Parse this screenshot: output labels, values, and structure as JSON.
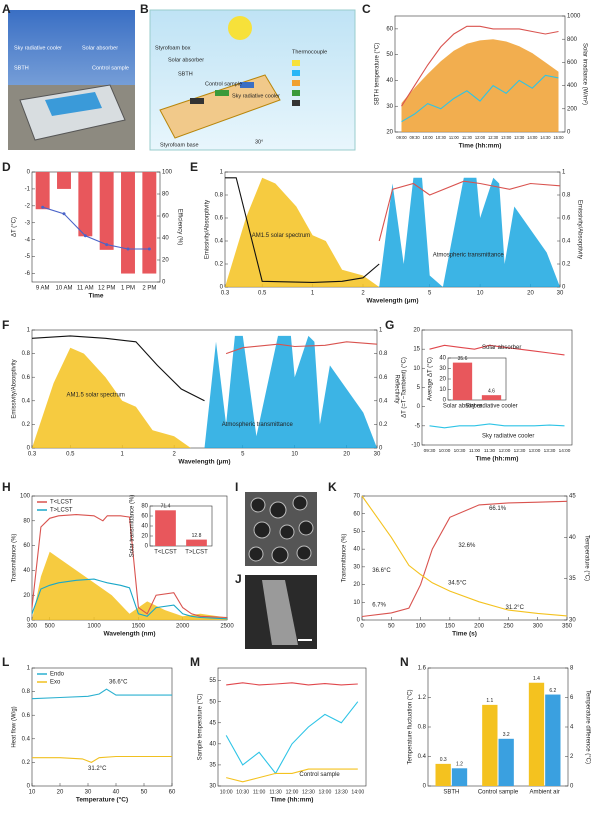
{
  "panel_labels": [
    "A",
    "B",
    "C",
    "D",
    "E",
    "F",
    "G",
    "H",
    "I",
    "J",
    "K",
    "L",
    "M",
    "N"
  ],
  "figure_texts": {
    "A": [
      "Sky radiative cooler",
      "Solar absorber",
      "SBTH",
      "Control sample"
    ],
    "B": [
      "Styrofoam box",
      "Solar absorber",
      "SBTH",
      "Control sample",
      "Sky radiative cooler",
      "Thermocouple",
      "Styrofoam base",
      "30°"
    ]
  },
  "chart_data": [
    {
      "type": "line",
      "xlabel": "Time (hh:mm)",
      "ylabel": "SBTH temperature (°C)",
      "y2label": "Solar irradiance (W/m²)",
      "categories": [
        "09:00",
        "09:30",
        "10:00",
        "10:30",
        "11:00",
        "11:30",
        "12:00",
        "12:30",
        "13:00",
        "13:30",
        "14:00",
        "14:30",
        "15:00"
      ],
      "ylim": [
        20,
        65
      ],
      "yticks": [
        20,
        30,
        40,
        50,
        60
      ],
      "y2lim": [
        0,
        1000
      ],
      "y2ticks": [
        0,
        200,
        400,
        600,
        800,
        1000
      ],
      "series": [
        {
          "color": "#f0a030",
          "fill": true,
          "axis": "y2",
          "values": [
            250,
            380,
            500,
            610,
            700,
            760,
            790,
            800,
            780,
            740,
            680,
            600,
            520
          ]
        },
        {
          "color": "#d9534f",
          "values": [
            30,
            38,
            46,
            53,
            58,
            61,
            61,
            60,
            60,
            60,
            59,
            58,
            59
          ]
        },
        {
          "color": "#2ec4e6",
          "values": [
            24,
            27,
            31,
            29,
            33,
            36,
            32,
            38,
            35,
            40,
            37,
            42,
            41
          ]
        }
      ]
    },
    {
      "type": "bar",
      "xlabel": "Time",
      "ylabel": "ΔT (°C)",
      "y2label": "Efficiency (%)",
      "categories": [
        "9 AM",
        "10 AM",
        "11 AM",
        "12 PM",
        "1 PM",
        "2 PM"
      ],
      "ylim": [
        -6.5,
        0
      ],
      "yticks": [
        0,
        -1,
        -2,
        -3,
        -4,
        -5,
        -6
      ],
      "y2lim": [
        0,
        100
      ],
      "y2ticks": [
        0,
        20,
        40,
        60,
        80,
        100
      ],
      "series": [
        {
          "color": "#e8575c",
          "values": [
            -2.2,
            -1.0,
            -3.8,
            -4.6,
            -6.0,
            -6.0
          ]
        },
        {
          "color": "#4a63c8",
          "style": "line",
          "axis": "y2",
          "values": [
            68,
            62,
            42,
            34,
            30,
            30
          ]
        }
      ]
    },
    {
      "type": "line",
      "xscale": "log",
      "xlabel": "Wavelength (μm)",
      "ylabel": "Emissivity/Absorptivity",
      "y2label": "Emissivity/Absorptivity",
      "xlim": [
        0.3,
        30
      ],
      "xticks": [
        0.3,
        0.5,
        1,
        2,
        5,
        10,
        20,
        30
      ],
      "ylim": [
        0,
        1
      ],
      "yticks": [
        0,
        0.2,
        0.4,
        0.6,
        0.8,
        1
      ],
      "y2lim": [
        0,
        1
      ],
      "y2ticks": [
        0,
        0.2,
        0.4,
        0.6,
        0.8,
        1
      ],
      "annotations": [
        "AM1.5 solar spectrum",
        "Atmospheric transmittance"
      ],
      "series": [
        {
          "color": "#f4c21f",
          "fill": true,
          "x": [
            0.3,
            0.4,
            0.5,
            0.6,
            0.8,
            1.0,
            1.2,
            1.5,
            2.0,
            2.5
          ],
          "values": [
            0,
            0.6,
            0.95,
            0.9,
            0.7,
            0.45,
            0.4,
            0.15,
            0.1,
            0
          ]
        },
        {
          "color": "#1aa7e0",
          "fill": true,
          "x": [
            2.5,
            3,
            3.5,
            4,
            4.5,
            5,
            6,
            8,
            9.5,
            10,
            12,
            13,
            14,
            16,
            20,
            25,
            30
          ],
          "values": [
            0,
            0.9,
            0.2,
            0.95,
            0.95,
            0.1,
            0,
            0.95,
            0.95,
            0.6,
            0.95,
            0.9,
            0.2,
            0.7,
            0.5,
            0.3,
            0
          ]
        },
        {
          "color": "#111111",
          "x": [
            0.3,
            0.35,
            0.5,
            1,
            1.5,
            2,
            2.5
          ],
          "values": [
            0.95,
            0.95,
            0.05,
            0.04,
            0.05,
            0.08,
            0.2
          ]
        },
        {
          "color": "#d9534f",
          "axis": "y2",
          "x": [
            2.5,
            3,
            4,
            5,
            8,
            10,
            15,
            20,
            30
          ],
          "values": [
            0.4,
            0.85,
            0.9,
            0.8,
            0.92,
            0.9,
            0.85,
            0.9,
            0.88
          ]
        }
      ]
    },
    {
      "type": "line",
      "xscale": "log",
      "xlabel": "Wavelength (μm)",
      "ylabel": "Emissivity/Absorptivity",
      "y2label": "Reflectivity",
      "xlim": [
        0.3,
        30
      ],
      "xticks": [
        0.3,
        0.5,
        1,
        2,
        5,
        10,
        20,
        30
      ],
      "ylim": [
        0,
        1
      ],
      "yticks": [
        0,
        0.2,
        0.4,
        0.6,
        0.8,
        1
      ],
      "y2lim": [
        0,
        1
      ],
      "y2ticks": [
        0,
        0.2,
        0.4,
        0.6,
        0.8,
        1
      ],
      "annotations": [
        "AM1.5 solar spectrum",
        "Atmospheric transmittance"
      ],
      "series": [
        {
          "color": "#f4c21f",
          "fill": true,
          "x": [
            0.3,
            0.4,
            0.5,
            0.6,
            0.8,
            1.0,
            1.2,
            1.5,
            2.0,
            2.5
          ],
          "values": [
            0,
            0.55,
            0.85,
            0.8,
            0.6,
            0.4,
            0.35,
            0.15,
            0.1,
            0
          ]
        },
        {
          "color": "#1aa7e0",
          "fill": true,
          "x": [
            3,
            3.5,
            4,
            4.5,
            5,
            6,
            8,
            9.5,
            10,
            12,
            13,
            14,
            16,
            20,
            25,
            30
          ],
          "values": [
            0,
            0.9,
            0.2,
            0.95,
            0.95,
            0.1,
            0.95,
            0.95,
            0.6,
            0.95,
            0.9,
            0.2,
            0.7,
            0.5,
            0.3,
            0
          ]
        },
        {
          "color": "#111111",
          "x": [
            0.3,
            0.5,
            0.8,
            1.2,
            1.6,
            2.2,
            3
          ],
          "values": [
            0.93,
            0.95,
            0.93,
            0.9,
            0.7,
            0.5,
            0.4
          ]
        },
        {
          "color": "#d9534f",
          "axis": "y2",
          "x": [
            4,
            5,
            8,
            10,
            15,
            20,
            30
          ],
          "values": [
            0.8,
            0.85,
            0.88,
            0.86,
            0.87,
            0.9,
            0.88
          ]
        }
      ]
    },
    {
      "type": "line",
      "xlabel": "Time (hh:mm)",
      "ylabel": "ΔT (=T−Tambient) (°C)",
      "categories": [
        "09:30",
        "10:00",
        "10:30",
        "11:00",
        "11:30",
        "12:00",
        "12:30",
        "13:00",
        "13:30",
        "14:00"
      ],
      "ylim": [
        -10,
        20
      ],
      "yticks": [
        -10,
        -5,
        0,
        5,
        10,
        15,
        20
      ],
      "annotations": [
        "Solar absorber",
        "Sky radiative cooler"
      ],
      "series": [
        {
          "color": "#e0474c",
          "values": [
            15,
            16,
            15.5,
            15,
            16,
            15.5,
            15,
            14.5,
            14,
            13.5
          ]
        },
        {
          "color": "#2ec4e6",
          "values": [
            -5,
            -5.5,
            -5,
            -5,
            -4.5,
            -5,
            -5,
            -5,
            -4.8,
            -5
          ]
        }
      ]
    },
    {
      "type": "bar",
      "ylabel": "Average ΔT (°C)",
      "show_values": true,
      "categories": [
        "Solar absorber",
        "Sky radiative cooler"
      ],
      "ylim": [
        0,
        40
      ],
      "yticks": [
        0,
        10,
        20,
        30,
        40
      ],
      "series": [
        {
          "color": "#e8575c",
          "values": [
            35.6,
            4.6
          ]
        }
      ]
    },
    {
      "type": "line",
      "xlabel": "Wavelength (nm)",
      "ylabel": "Transmittance (%)",
      "xlim": [
        300,
        2500
      ],
      "xticks": [
        300,
        500,
        1000,
        1500,
        2000,
        2500
      ],
      "ylim": [
        0,
        100
      ],
      "yticks": [
        0,
        20,
        40,
        60,
        80,
        100
      ],
      "series": [
        {
          "color": "#f4c21f",
          "fill": true,
          "x": [
            300,
            400,
            500,
            600,
            800,
            1000,
            1200,
            1400,
            1600,
            1800,
            2000,
            2200,
            2500
          ],
          "values": [
            0,
            35,
            55,
            50,
            40,
            30,
            20,
            5,
            15,
            8,
            3,
            5,
            2
          ]
        },
        {
          "name": "T<LCST",
          "color": "#d9534f",
          "x": [
            300,
            400,
            500,
            600,
            800,
            1000,
            1100,
            1150,
            1300,
            1400,
            1500,
            1600,
            1700,
            1900,
            2000,
            2100,
            2200,
            2500
          ],
          "values": [
            10,
            75,
            82,
            84,
            85,
            84,
            80,
            84,
            84,
            83,
            10,
            5,
            20,
            22,
            10,
            5,
            3,
            2
          ]
        },
        {
          "name": "T>LCST",
          "color": "#1aa7c8",
          "x": [
            300,
            400,
            500,
            600,
            800,
            1000,
            1100,
            1150,
            1300,
            1400,
            1500,
            1600,
            1700,
            1900,
            2000,
            2100,
            2200,
            2500
          ],
          "values": [
            5,
            25,
            28,
            30,
            32,
            33,
            31,
            30,
            28,
            26,
            5,
            3,
            10,
            12,
            5,
            3,
            2,
            1
          ]
        }
      ]
    },
    {
      "type": "bar",
      "ylabel": "Solar transmittance (%)",
      "show_values": true,
      "categories": [
        "T<LCST",
        "T>LCST"
      ],
      "ylim": [
        0,
        80
      ],
      "yticks": [
        0,
        20,
        40,
        60,
        80
      ],
      "series": [
        {
          "color": "#e8575c",
          "values": [
            71.4,
            12.8
          ]
        }
      ]
    },
    {
      "type": "line",
      "xlabel": "Time (s)",
      "ylabel": "Transmittance (%)",
      "y2label": "Temperature (°C)",
      "xlim": [
        0,
        350
      ],
      "xticks": [
        0,
        50,
        100,
        150,
        200,
        250,
        300,
        350
      ],
      "ylim": [
        0,
        70
      ],
      "yticks": [
        0,
        10,
        20,
        30,
        40,
        50,
        60,
        70
      ],
      "y2lim": [
        30,
        45
      ],
      "y2ticks": [
        30,
        35,
        40,
        45
      ],
      "annotations": [
        "66.1%",
        "32.6%",
        "36.6°C",
        "34.5°C",
        "31.2°C",
        "6.7%"
      ],
      "series": [
        {
          "color": "#d9534f",
          "x": [
            0,
            50,
            80,
            100,
            120,
            150,
            200,
            250,
            300,
            350
          ],
          "values": [
            2,
            4,
            6.7,
            20,
            40,
            58,
            65,
            66.1,
            66.5,
            67
          ]
        },
        {
          "color": "#f4c21f",
          "axis": "y2",
          "x": [
            0,
            50,
            80,
            100,
            120,
            150,
            200,
            250,
            300,
            350
          ],
          "values": [
            45,
            40,
            36.6,
            35.5,
            34.5,
            33.5,
            32.2,
            31.2,
            30.8,
            30.5
          ]
        }
      ]
    },
    {
      "type": "line",
      "xlabel": "Temperature (°C)",
      "ylabel": "Heat flow (W/g)",
      "xlim": [
        10,
        60
      ],
      "xticks": [
        10,
        20,
        30,
        40,
        50,
        60
      ],
      "ylim": [
        0,
        1
      ],
      "yticks": [
        0,
        0.2,
        0.4,
        0.6,
        0.8,
        1
      ],
      "annotations": [
        "36.6°C",
        "31.2°C"
      ],
      "series": [
        {
          "name": "Endo",
          "color": "#2ab0d0",
          "x": [
            10,
            20,
            30,
            34,
            36.6,
            40,
            50,
            60
          ],
          "values": [
            0.74,
            0.75,
            0.76,
            0.78,
            0.82,
            0.77,
            0.77,
            0.77
          ]
        },
        {
          "name": "Exo",
          "color": "#f0c020",
          "x": [
            10,
            20,
            28,
            31.2,
            34,
            40,
            50,
            60
          ],
          "values": [
            0.24,
            0.24,
            0.23,
            0.2,
            0.24,
            0.25,
            0.25,
            0.25
          ]
        }
      ]
    },
    {
      "type": "line",
      "xlabel": "Time (hh:mm)",
      "ylabel": "Sample temperature (°C)",
      "categories": [
        "10:00",
        "10:30",
        "11:00",
        "11:30",
        "12:00",
        "12:30",
        "13:00",
        "13:30",
        "14:00"
      ],
      "ylim": [
        30,
        58
      ],
      "yticks": [
        30,
        35,
        40,
        45,
        50,
        55
      ],
      "annotations": [
        "Control sample"
      ],
      "series": [
        {
          "color": "#e0474c",
          "values": [
            54,
            54.5,
            54,
            54.2,
            54.5,
            54,
            54.3,
            54,
            54.2
          ]
        },
        {
          "color": "#2ec4e6",
          "values": [
            42,
            35,
            38,
            33,
            40,
            44,
            47,
            45,
            50
          ]
        },
        {
          "color": "#f4c21f",
          "values": [
            32,
            31,
            32,
            33,
            33,
            34,
            34,
            34,
            34
          ]
        }
      ]
    },
    {
      "type": "bar",
      "ylabel": "Temperature fluctuation (°C)",
      "y2label": "Temperature difference (°C)",
      "show_values": true,
      "categories": [
        "SBTH",
        "Control sample",
        "Ambient air"
      ],
      "ylim": [
        0,
        1.6
      ],
      "yticks": [
        0,
        0.4,
        0.8,
        1.2,
        1.6
      ],
      "y2lim": [
        0,
        8
      ],
      "y2ticks": [
        0,
        2,
        4,
        6,
        8
      ],
      "series": [
        {
          "color": "#f4c21f",
          "values": [
            0.3,
            1.1,
            1.4
          ]
        },
        {
          "color": "#3aa0e0",
          "axis": "y2",
          "values": [
            1.2,
            3.2,
            6.2
          ]
        }
      ]
    }
  ]
}
